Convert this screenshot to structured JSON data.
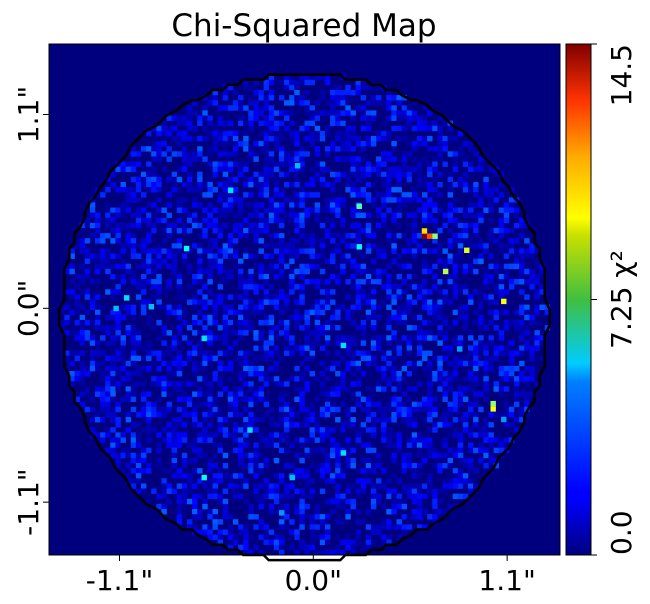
{
  "chart_data": {
    "type": "heatmap",
    "title": "Chi-Squared Map",
    "xlabel": "",
    "ylabel": "",
    "x_tick_labels": [
      "-1.1\"",
      "0.0\"",
      "1.1\""
    ],
    "x_tick_values": [
      -1.1,
      0.0,
      1.1
    ],
    "y_tick_labels": [
      "-1.1\"",
      "0.0\"",
      "1.1\""
    ],
    "y_tick_values": [
      -1.1,
      0.0,
      1.1
    ],
    "xlim": [
      -1.5,
      1.4
    ],
    "ylim": [
      -1.4,
      1.5
    ],
    "colorbar": {
      "colormap": "jet",
      "range": [
        0.0,
        14.5
      ],
      "tick_values": [
        0.0,
        7.25,
        14.5
      ],
      "tick_labels": [
        "0.0",
        "7.25 χ²",
        "14.5"
      ]
    },
    "mask_shape": "circle",
    "mask_center": [
      -0.05,
      -0.05
    ],
    "mask_radius": 1.38,
    "grid": false,
    "hotspots": [
      {
        "x": 0.63,
        "y": 0.41,
        "value": 14.5
      },
      {
        "x": 0.66,
        "y": 0.41,
        "value": 11.5
      },
      {
        "x": 0.63,
        "y": 0.44,
        "value": 9.5
      },
      {
        "x": 0.69,
        "y": 0.41,
        "value": 7.5
      },
      {
        "x": 1.08,
        "y": 0.04,
        "value": 9.0
      },
      {
        "x": 1.02,
        "y": -0.57,
        "value": 9.0
      },
      {
        "x": 1.02,
        "y": -0.54,
        "value": 7.5
      },
      {
        "x": 0.87,
        "y": 0.33,
        "value": 8.5
      },
      {
        "x": 0.75,
        "y": 0.21,
        "value": 8.0
      },
      {
        "x": 0.26,
        "y": 0.58,
        "value": 6.5
      },
      {
        "x": 0.26,
        "y": 0.35,
        "value": 5.5
      },
      {
        "x": -0.72,
        "y": 0.34,
        "value": 5.5
      },
      {
        "x": -0.47,
        "y": 0.67,
        "value": 5.0
      },
      {
        "x": -1.06,
        "y": 0.06,
        "value": 5.0
      },
      {
        "x": -0.62,
        "y": -0.96,
        "value": 5.5
      },
      {
        "x": -0.36,
        "y": -0.69,
        "value": 5.0
      },
      {
        "x": 0.17,
        "y": -0.82,
        "value": 5.0
      },
      {
        "x": -0.62,
        "y": -0.17,
        "value": 5.0
      },
      {
        "x": 0.17,
        "y": -0.21,
        "value": 5.0
      },
      {
        "x": -1.12,
        "y": 0.0,
        "value": 4.5
      },
      {
        "x": -0.09,
        "y": 0.81,
        "value": 4.5
      },
      {
        "x": -0.92,
        "y": 0.01,
        "value": 4.5
      },
      {
        "x": -0.12,
        "y": -0.96,
        "value": 4.5
      },
      {
        "x": -0.18,
        "y": -1.16,
        "value": 4.0
      },
      {
        "x": 0.83,
        "y": -0.23,
        "value": 4.0
      },
      {
        "x": 1.08,
        "y": -0.63,
        "value": 4.0
      }
    ]
  }
}
